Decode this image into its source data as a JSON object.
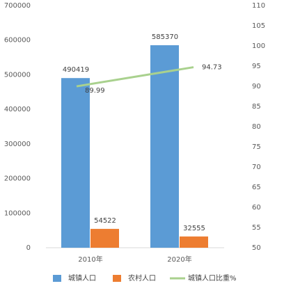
{
  "chart_data": {
    "type": "bar-line",
    "categories": [
      "2010年",
      "2020年"
    ],
    "series": [
      {
        "name": "城镇人口",
        "color": "#5b9bd5",
        "type": "bar",
        "values": [
          490419,
          585370
        ]
      },
      {
        "name": "农村人口",
        "color": "#ed7d31",
        "type": "bar",
        "values": [
          54522,
          32555
        ]
      },
      {
        "name": "城镇人口比重%",
        "color": "#a9d18e",
        "type": "line",
        "axis": "y2",
        "values": [
          89.99,
          94.73
        ]
      }
    ],
    "ylim": [
      0,
      700000
    ],
    "yticks": [
      0,
      100000,
      200000,
      300000,
      400000,
      500000,
      600000,
      700000
    ],
    "y2lim": [
      50,
      110
    ],
    "y2ticks": [
      50,
      55,
      60,
      65,
      70,
      75,
      80,
      85,
      90,
      95,
      100,
      105,
      110
    ],
    "legend": "bottom"
  }
}
